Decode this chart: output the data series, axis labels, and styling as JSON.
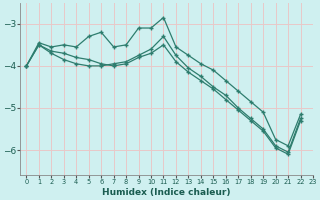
{
  "xlabel": "Humidex (Indice chaleur)",
  "bg_color": "#cff0f0",
  "grid_color": "#e8c8c8",
  "line_color": "#2e7d6e",
  "xlim": [
    -0.5,
    23
  ],
  "ylim": [
    -6.6,
    -2.5
  ],
  "yticks": [
    -6,
    -5,
    -4,
    -3
  ],
  "xticks": [
    0,
    1,
    2,
    3,
    4,
    5,
    6,
    7,
    8,
    9,
    10,
    11,
    12,
    13,
    14,
    15,
    16,
    17,
    18,
    19,
    20,
    21,
    22,
    23
  ],
  "line1_x": [
    0,
    1,
    2,
    3,
    4,
    5,
    6,
    7,
    8,
    9,
    10,
    11,
    12,
    13,
    14,
    15,
    16,
    17,
    18,
    19,
    20,
    21,
    22
  ],
  "line1_y": [
    -4.0,
    -3.45,
    -3.55,
    -3.5,
    -3.55,
    -3.3,
    -3.2,
    -3.55,
    -3.5,
    -3.1,
    -3.1,
    -2.85,
    -3.55,
    -3.75,
    -3.95,
    -4.1,
    -4.35,
    -4.6,
    -4.85,
    -5.1,
    -5.75,
    -5.9,
    -5.15
  ],
  "line2_x": [
    0,
    1,
    2,
    3,
    4,
    5,
    6,
    7,
    8,
    9,
    10,
    11,
    12,
    13,
    14,
    15,
    16,
    17,
    18,
    19,
    20,
    21,
    22
  ],
  "line2_y": [
    -4.0,
    -3.5,
    -3.7,
    -3.85,
    -3.95,
    -4.0,
    -4.0,
    -3.95,
    -3.9,
    -3.75,
    -3.6,
    -3.3,
    -3.75,
    -4.05,
    -4.25,
    -4.5,
    -4.7,
    -5.0,
    -5.25,
    -5.5,
    -5.9,
    -6.05,
    -5.25
  ],
  "line3_x": [
    0,
    1,
    2,
    3,
    4,
    5,
    6,
    7,
    8,
    9,
    10,
    11,
    12,
    13,
    14,
    15,
    16,
    17,
    18,
    19,
    20,
    21,
    22
  ],
  "line3_y": [
    -4.0,
    -3.5,
    -3.65,
    -3.7,
    -3.8,
    -3.85,
    -3.95,
    -4.0,
    -3.95,
    -3.8,
    -3.7,
    -3.5,
    -3.9,
    -4.15,
    -4.35,
    -4.55,
    -4.8,
    -5.05,
    -5.3,
    -5.55,
    -5.95,
    -6.1,
    -5.3
  ]
}
